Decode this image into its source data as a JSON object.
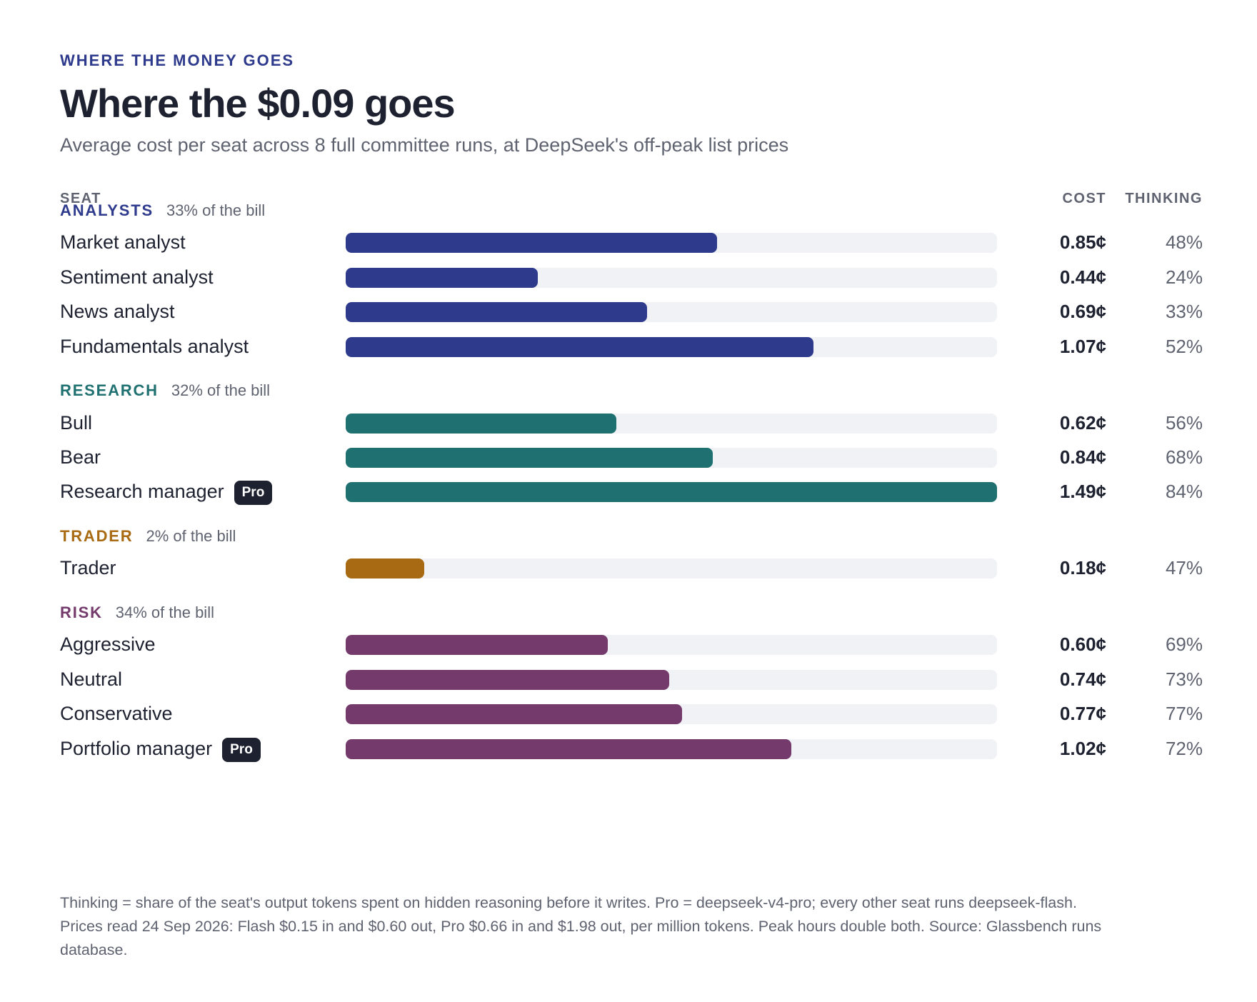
{
  "kicker": "WHERE THE MONEY GOES",
  "title": "Where the $0.09 goes",
  "subtitle": "Average cost per seat across 8 full committee runs, at DeepSeek's off-peak list prices",
  "columns": {
    "seat": "SEAT",
    "cost": "COST",
    "thinking": "THINKING"
  },
  "badge_label": "Pro",
  "colors": {
    "analysts": "#2e3a8c",
    "research": "#1f7070",
    "trader": "#a86a12",
    "risk": "#743a6c",
    "track": "#f1f2f6"
  },
  "chart_data": {
    "type": "bar",
    "orientation": "horizontal",
    "xlim": [
      0,
      1.49
    ],
    "value_unit": "¢",
    "groups": [
      {
        "key": "analysts",
        "name": "ANALYSTS",
        "share_label": "33% of the bill",
        "seats": [
          {
            "name": "Market analyst",
            "cost": 0.85,
            "cost_label": "0.85¢",
            "thinking_label": "48%",
            "pro": false
          },
          {
            "name": "Sentiment analyst",
            "cost": 0.44,
            "cost_label": "0.44¢",
            "thinking_label": "24%",
            "pro": false
          },
          {
            "name": "News analyst",
            "cost": 0.69,
            "cost_label": "0.69¢",
            "thinking_label": "33%",
            "pro": false
          },
          {
            "name": "Fundamentals analyst",
            "cost": 1.07,
            "cost_label": "1.07¢",
            "thinking_label": "52%",
            "pro": false
          }
        ]
      },
      {
        "key": "research",
        "name": "RESEARCH",
        "share_label": "32% of the bill",
        "seats": [
          {
            "name": "Bull",
            "cost": 0.62,
            "cost_label": "0.62¢",
            "thinking_label": "56%",
            "pro": false
          },
          {
            "name": "Bear",
            "cost": 0.84,
            "cost_label": "0.84¢",
            "thinking_label": "68%",
            "pro": false
          },
          {
            "name": "Research manager",
            "cost": 1.49,
            "cost_label": "1.49¢",
            "thinking_label": "84%",
            "pro": true
          }
        ]
      },
      {
        "key": "trader",
        "name": "TRADER",
        "share_label": "2% of the bill",
        "seats": [
          {
            "name": "Trader",
            "cost": 0.18,
            "cost_label": "0.18¢",
            "thinking_label": "47%",
            "pro": false
          }
        ]
      },
      {
        "key": "risk",
        "name": "RISK",
        "share_label": "34% of the bill",
        "seats": [
          {
            "name": "Aggressive",
            "cost": 0.6,
            "cost_label": "0.60¢",
            "thinking_label": "69%",
            "pro": false
          },
          {
            "name": "Neutral",
            "cost": 0.74,
            "cost_label": "0.74¢",
            "thinking_label": "73%",
            "pro": false
          },
          {
            "name": "Conservative",
            "cost": 0.77,
            "cost_label": "0.77¢",
            "thinking_label": "77%",
            "pro": false
          },
          {
            "name": "Portfolio manager",
            "cost": 1.02,
            "cost_label": "1.02¢",
            "thinking_label": "72%",
            "pro": true
          }
        ]
      }
    ]
  },
  "footnote": {
    "line1": "Thinking = share of the seat's output tokens spent on hidden reasoning before it writes. Pro = deepseek-v4-pro; every other seat runs deepseek-flash.",
    "line2": "Prices read 24 Sep 2026: Flash $0.15 in and $0.60 out, Pro $0.66 in and $1.98 out, per million tokens. Peak hours double both. Source: Glassbench runs",
    "line3": "database."
  }
}
